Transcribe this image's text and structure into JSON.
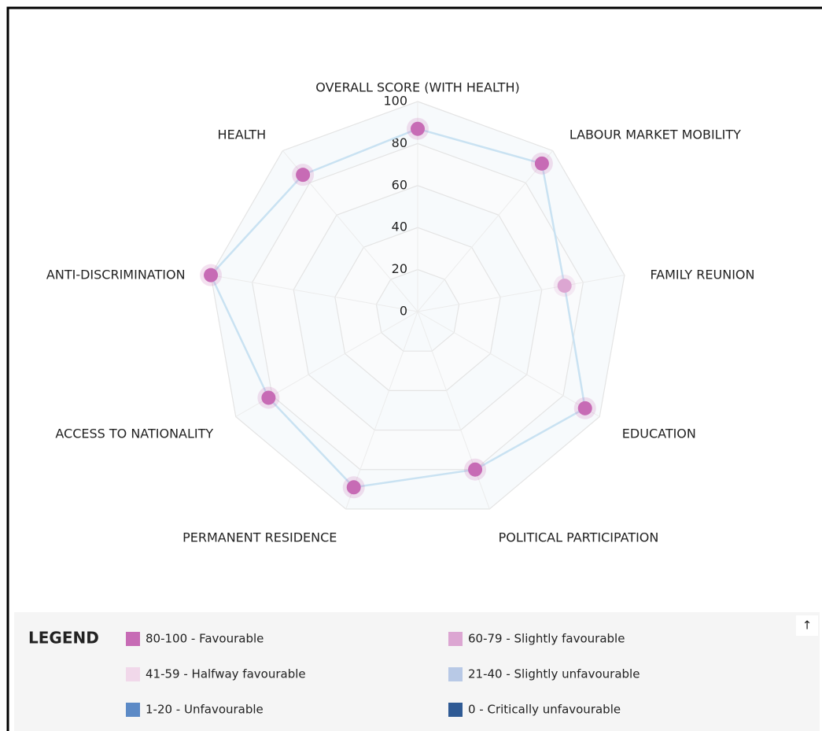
{
  "chart_data": {
    "type": "radar",
    "categories": [
      "OVERALL SCORE (WITH HEALTH)",
      "LABOUR MARKET MOBILITY",
      "FAMILY REUNION",
      "EDUCATION",
      "POLITICAL PARTICIPATION",
      "PERMANENT RESIDENCE",
      "ACCESS TO NATIONALITY",
      "ANTI-DISCRIMINATION",
      "HEALTH"
    ],
    "values": [
      87,
      92,
      71,
      92,
      80,
      89,
      82,
      100,
      85
    ],
    "point_colors": [
      "#c76bb5",
      "#c76bb5",
      "#dca6d2",
      "#c76bb5",
      "#c76bb5",
      "#c76bb5",
      "#c76bb5",
      "#c76bb5",
      "#c76bb5"
    ],
    "line_color": "#c9e2f2",
    "ylim": [
      0,
      100
    ],
    "yticks": [
      0,
      20,
      40,
      60,
      80,
      100
    ],
    "grid": true
  },
  "legend": {
    "title": "LEGEND",
    "items": [
      {
        "label": "80-100 - Favourable",
        "color": "#c76bb5"
      },
      {
        "label": "60-79 - Slightly favourable",
        "color": "#dca6d2"
      },
      {
        "label": "41-59 - Halfway favourable",
        "color": "#f1d8ea"
      },
      {
        "label": "21-40 - Slightly unfavourable",
        "color": "#b8c9e6"
      },
      {
        "label": "1-20 - Unfavourable",
        "color": "#5c8ac6"
      },
      {
        "label": "0 - Critically unfavourable",
        "color": "#2f5a94"
      }
    ]
  },
  "scroll_button": "↑"
}
